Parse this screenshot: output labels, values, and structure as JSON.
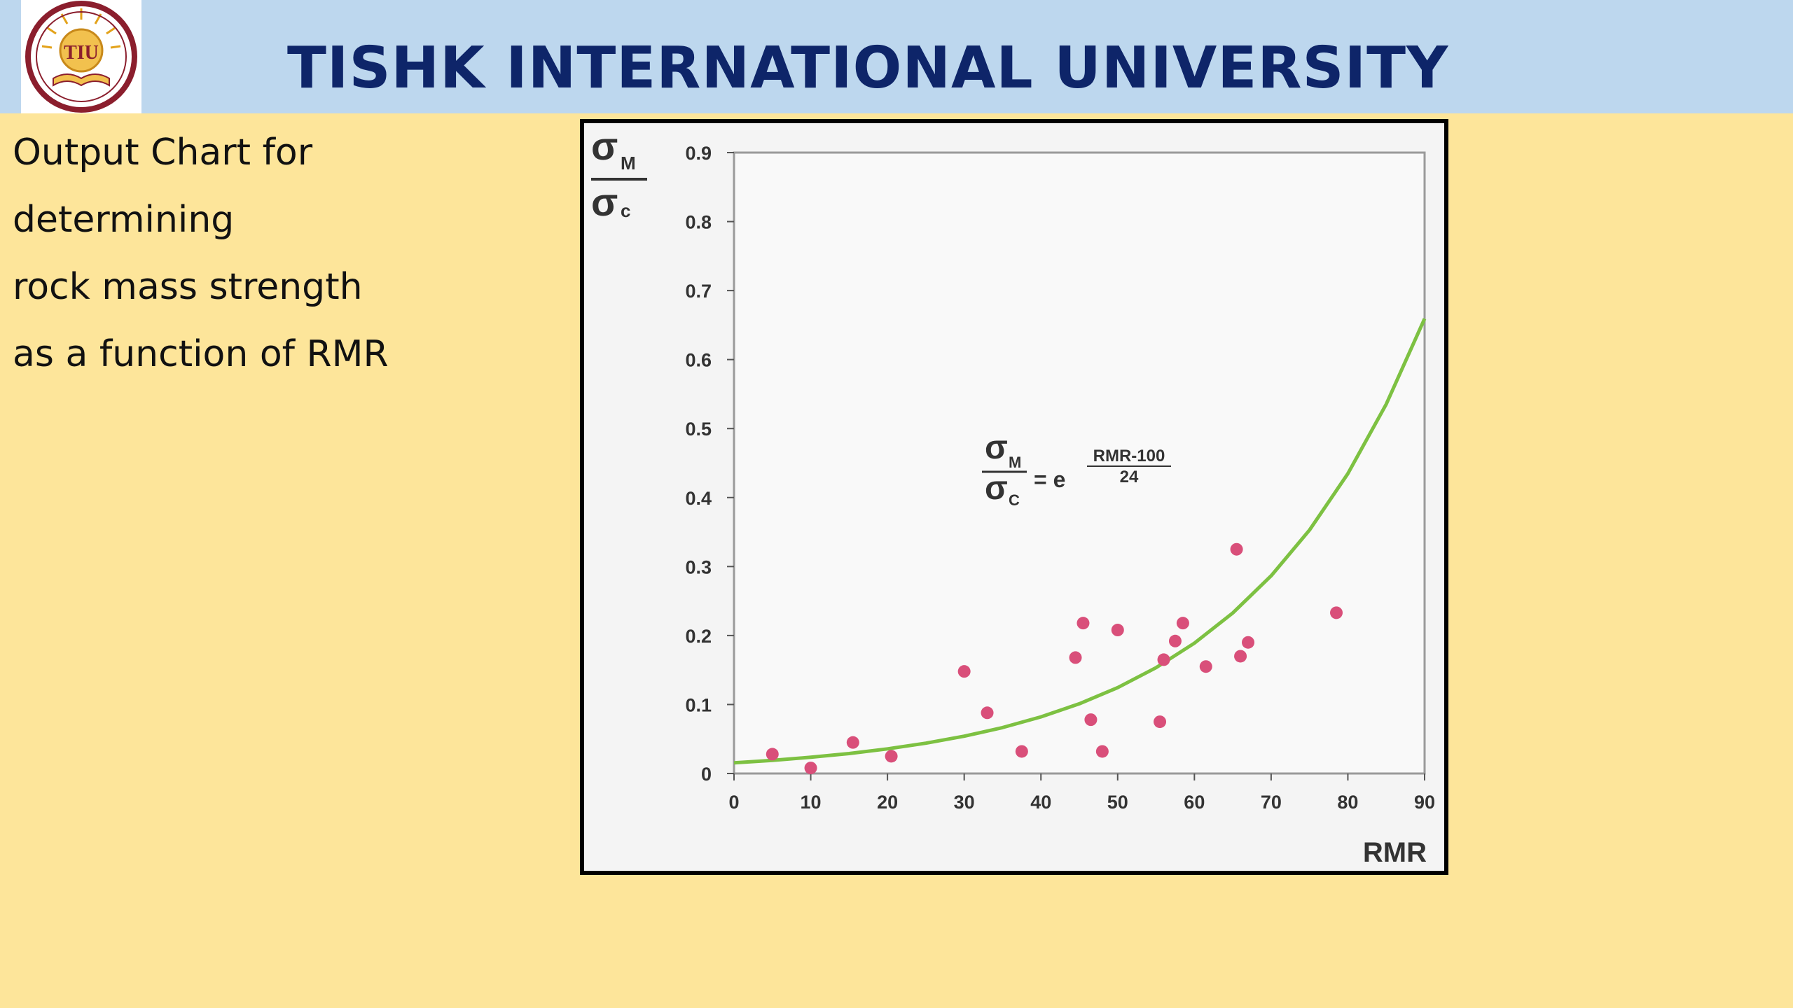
{
  "header": {
    "title": "TISHK INTERNATIONAL UNIVERSITY",
    "logo_text": "TIU"
  },
  "side_text": {
    "lines": [
      "Output Chart for",
      "determining",
      "rock mass strength",
      "as a function of RMR"
    ]
  },
  "colors": {
    "background": "#fde59a",
    "header": "#bdd7ee",
    "title": "#0e2569",
    "curve": "#7dc142",
    "points": "#d94f7a"
  },
  "chart_data": {
    "type": "scatter",
    "xlabel": "RMR",
    "ylabel": {
      "numerator": "σM",
      "denominator": "σc",
      "num_symbol": "σ",
      "num_sub": "M",
      "den_symbol": "σ",
      "den_sub": "c"
    },
    "xlim": [
      0,
      90
    ],
    "ylim": [
      0,
      0.9
    ],
    "xticks": [
      "0",
      "10",
      "20",
      "30",
      "40",
      "50",
      "60",
      "70",
      "80",
      "90"
    ],
    "yticks": [
      "0",
      "0.1",
      "0.2",
      "0.3",
      "0.4",
      "0.5",
      "0.6",
      "0.7",
      "0.8",
      "0.9"
    ],
    "grid": false,
    "series": [
      {
        "kind": "points",
        "x": [
          5,
          10,
          15.5,
          20.5,
          30,
          33,
          37.5,
          44.5,
          45.5,
          46.5,
          48,
          50,
          55.5,
          56,
          57.5,
          58.5,
          61.5,
          65.5,
          66,
          67,
          78.5
        ],
        "y": [
          0.028,
          0.008,
          0.045,
          0.025,
          0.148,
          0.088,
          0.032,
          0.168,
          0.218,
          0.078,
          0.032,
          0.208,
          0.075,
          0.165,
          0.192,
          0.218,
          0.155,
          0.325,
          0.17,
          0.19,
          0.233
        ]
      },
      {
        "kind": "curve",
        "equation": "σM/σc = e^((RMR-100)/24)",
        "x": [
          0,
          5,
          10,
          15,
          20,
          25,
          30,
          35,
          40,
          45,
          50,
          55,
          60,
          65,
          70,
          75,
          80,
          85,
          90
        ],
        "y": [
          0.0155,
          0.0191,
          0.0235,
          0.0289,
          0.0357,
          0.0439,
          0.0541,
          0.0666,
          0.0821,
          0.1011,
          0.1245,
          0.1534,
          0.1889,
          0.2327,
          0.2865,
          0.3529,
          0.4346,
          0.5353,
          0.6592
        ]
      }
    ],
    "annotation": {
      "lhs_num_symbol": "σ",
      "lhs_num_sub": "M",
      "lhs_den_symbol": "σ",
      "lhs_den_sub": "C",
      "equals": "= e",
      "exp_num": "RMR-100",
      "exp_den": "24"
    }
  }
}
